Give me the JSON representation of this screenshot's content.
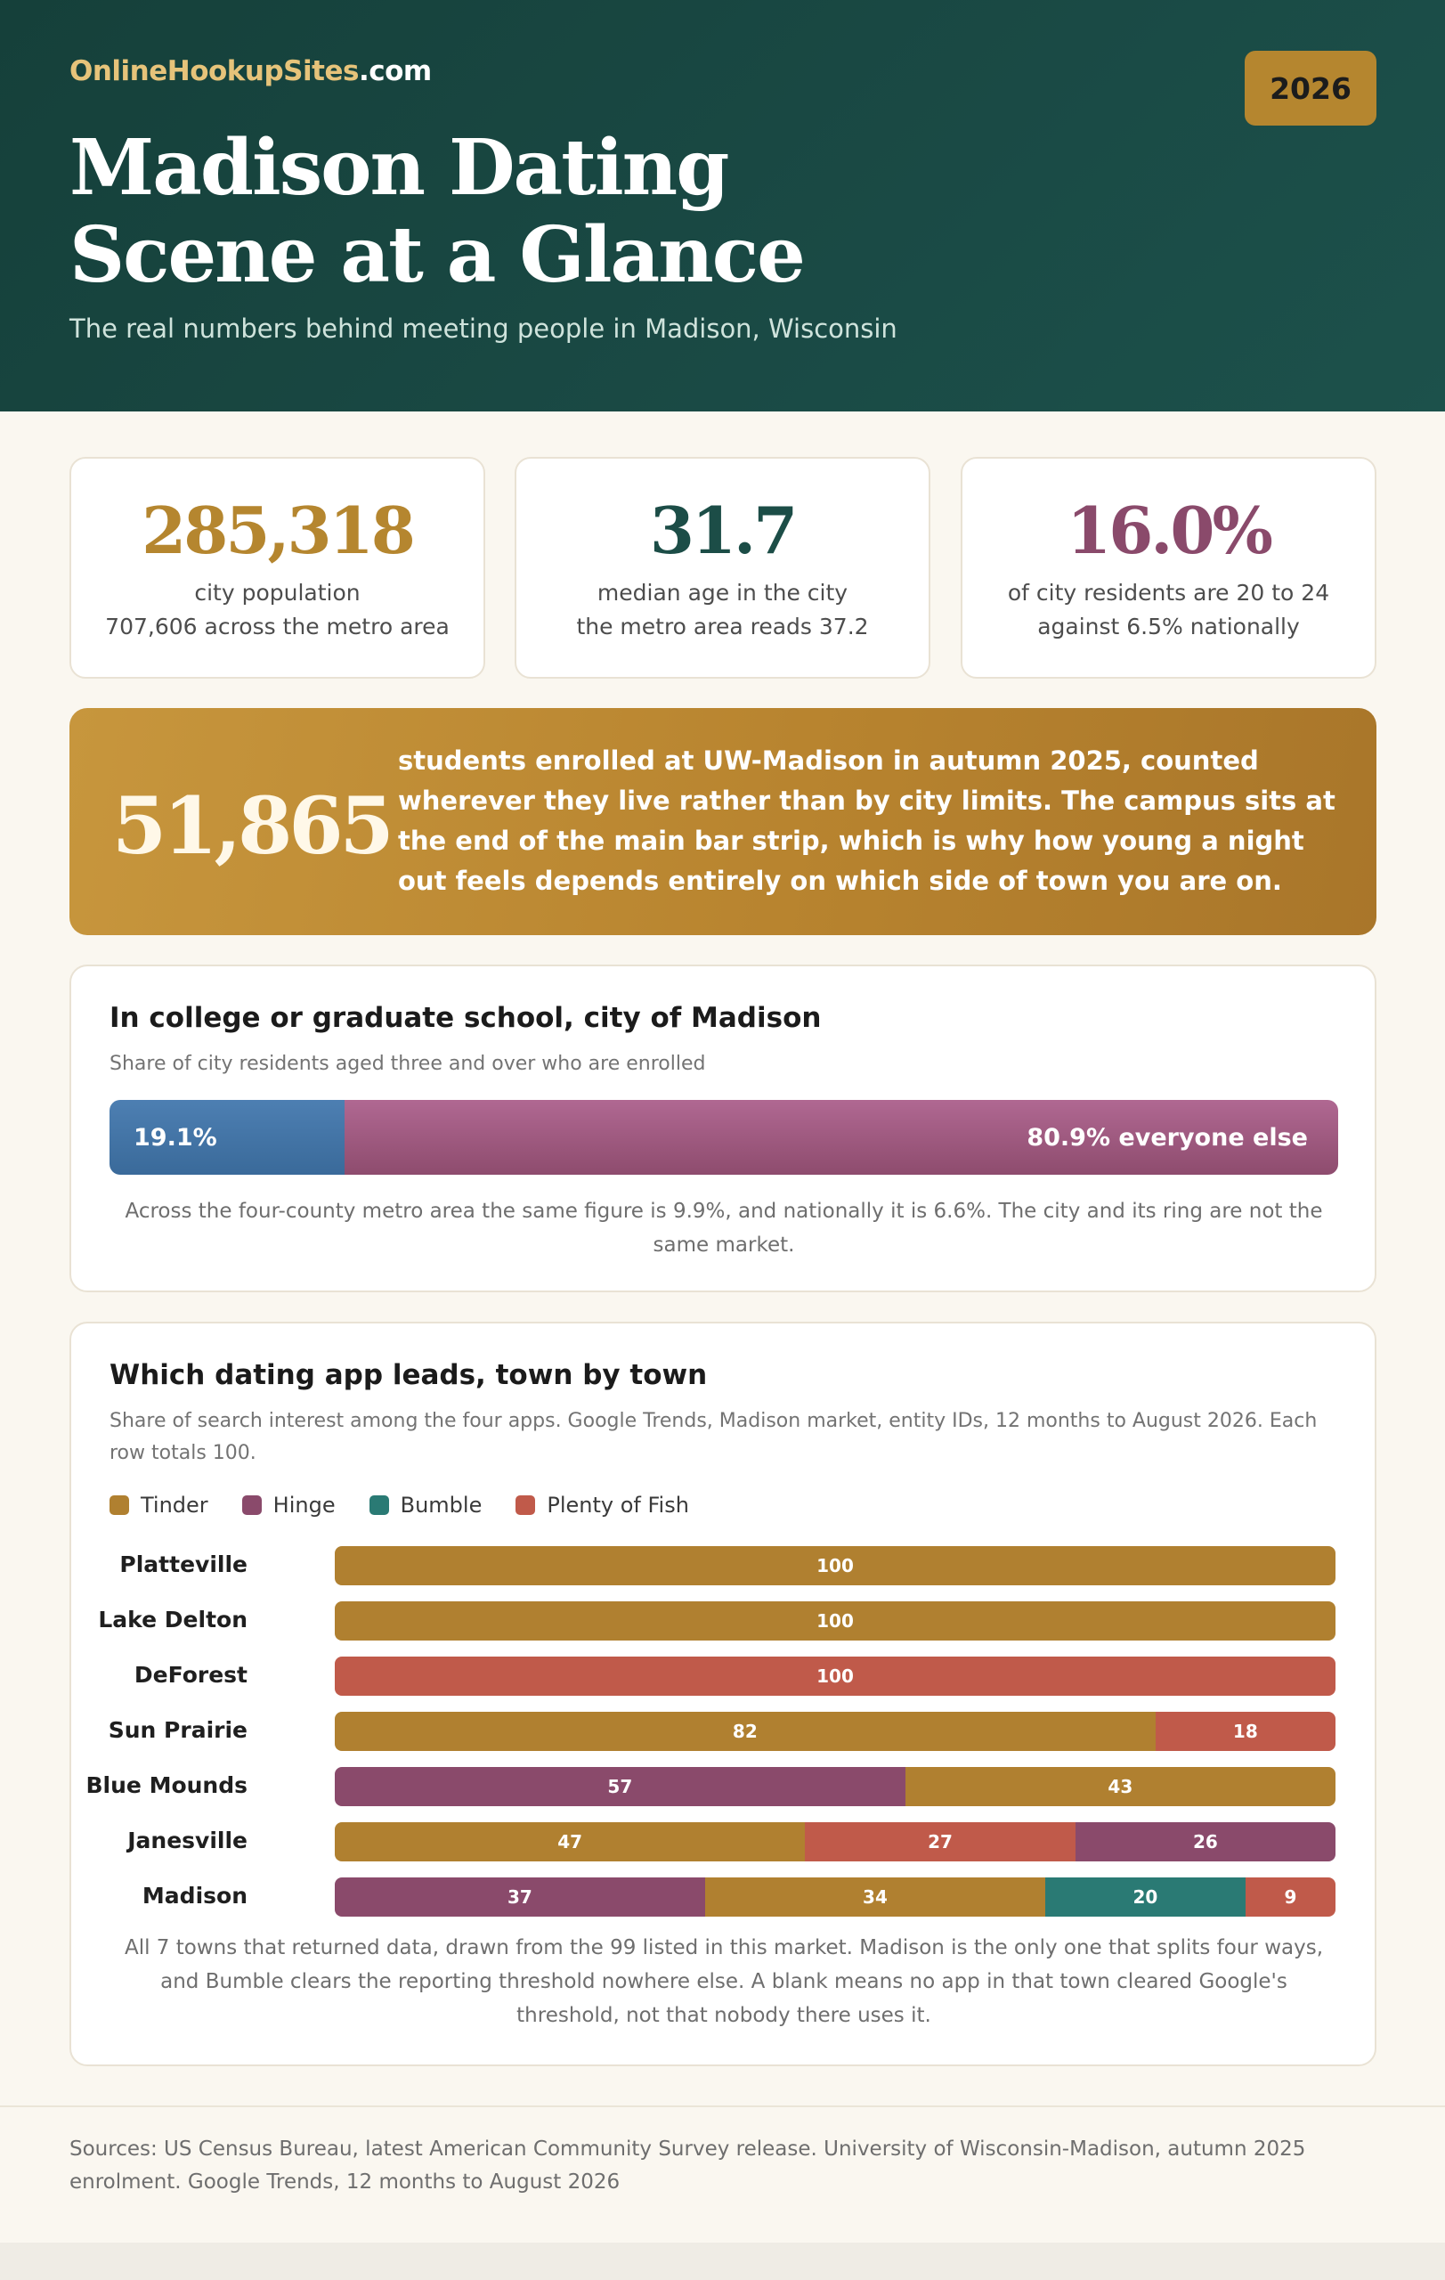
{
  "header": {
    "brand_main": "OnlineHookupSites",
    "brand_tld": ".com",
    "year": "2026",
    "title_line1": "Madison Dating",
    "title_line2": "Scene at a Glance",
    "subtitle": "The real numbers behind meeting people in Madison, Wisconsin"
  },
  "stats": [
    {
      "value": "285,318",
      "line1": "city population",
      "line2": "707,606 across the metro area",
      "color": "#b5862f"
    },
    {
      "value": "31.7",
      "line1": "median age in the city",
      "line2": "the metro area reads 37.2",
      "color": "#1c4d47"
    },
    {
      "value": "16.0%",
      "line1": "of city residents are 20 to 24",
      "line2": "against 6.5% nationally",
      "color": "#8a4a6b"
    }
  ],
  "banner": {
    "value": "51,865",
    "text": "students enrolled at UW-Madison in autumn 2025, counted wherever they live rather than by city limits. The campus sits at the end of the main bar strip, which is why how young a night out feels depends entirely on which side of town you are on."
  },
  "enrollment": {
    "title": "In college or graduate school, city of Madison",
    "subtitle": "Share of city residents aged three and over who are enrolled",
    "enrolled_pct": 19.1,
    "enrolled_label": "19.1%",
    "other_label": "80.9% everyone else",
    "note": "Across the four-county metro area the same figure is 9.9%, and nationally it is 6.6%. The city and its ring are not the same market."
  },
  "apps": {
    "title": "Which dating app leads, town by town",
    "subtitle": "Share of search interest among the four apps. Google Trends, Madison market, entity IDs, 12 months to August 2026. Each row totals 100.",
    "note": "All 7 towns that returned data, drawn from the 99 listed in this market. Madison is the only one that splits four ways, and Bumble clears the reporting threshold nowhere else. A blank means no app in that town cleared Google's threshold, not that nobody there uses it."
  },
  "chart_data": {
    "type": "bar",
    "orientation": "horizontal",
    "stacked": true,
    "legend_position": "top-left",
    "series_colors": {
      "Tinder": "#b08030",
      "Hinge": "#8a4a6b",
      "Bumble": "#2a7a74",
      "Plenty of Fish": "#c05a4a"
    },
    "legend": [
      "Tinder",
      "Hinge",
      "Bumble",
      "Plenty of Fish"
    ],
    "rows": [
      {
        "town": "Platteville",
        "segments": [
          {
            "app": "Tinder",
            "value": 100
          }
        ]
      },
      {
        "town": "Lake Delton",
        "segments": [
          {
            "app": "Tinder",
            "value": 100
          }
        ]
      },
      {
        "town": "DeForest",
        "segments": [
          {
            "app": "Plenty of Fish",
            "value": 100
          }
        ]
      },
      {
        "town": "Sun Prairie",
        "segments": [
          {
            "app": "Tinder",
            "value": 82
          },
          {
            "app": "Plenty of Fish",
            "value": 18
          }
        ]
      },
      {
        "town": "Blue Mounds",
        "segments": [
          {
            "app": "Hinge",
            "value": 57
          },
          {
            "app": "Tinder",
            "value": 43
          }
        ]
      },
      {
        "town": "Janesville",
        "segments": [
          {
            "app": "Tinder",
            "value": 47
          },
          {
            "app": "Plenty of Fish",
            "value": 27
          },
          {
            "app": "Hinge",
            "value": 26
          }
        ]
      },
      {
        "town": "Madison",
        "segments": [
          {
            "app": "Hinge",
            "value": 37
          },
          {
            "app": "Tinder",
            "value": 34
          },
          {
            "app": "Bumble",
            "value": 20
          },
          {
            "app": "Plenty of Fish",
            "value": 9
          }
        ]
      }
    ]
  },
  "sources": "Sources: US Census Bureau, latest American Community Survey release. University of Wisconsin-Madison, autumn 2025 enrolment. Google Trends, 12 months to August 2026"
}
